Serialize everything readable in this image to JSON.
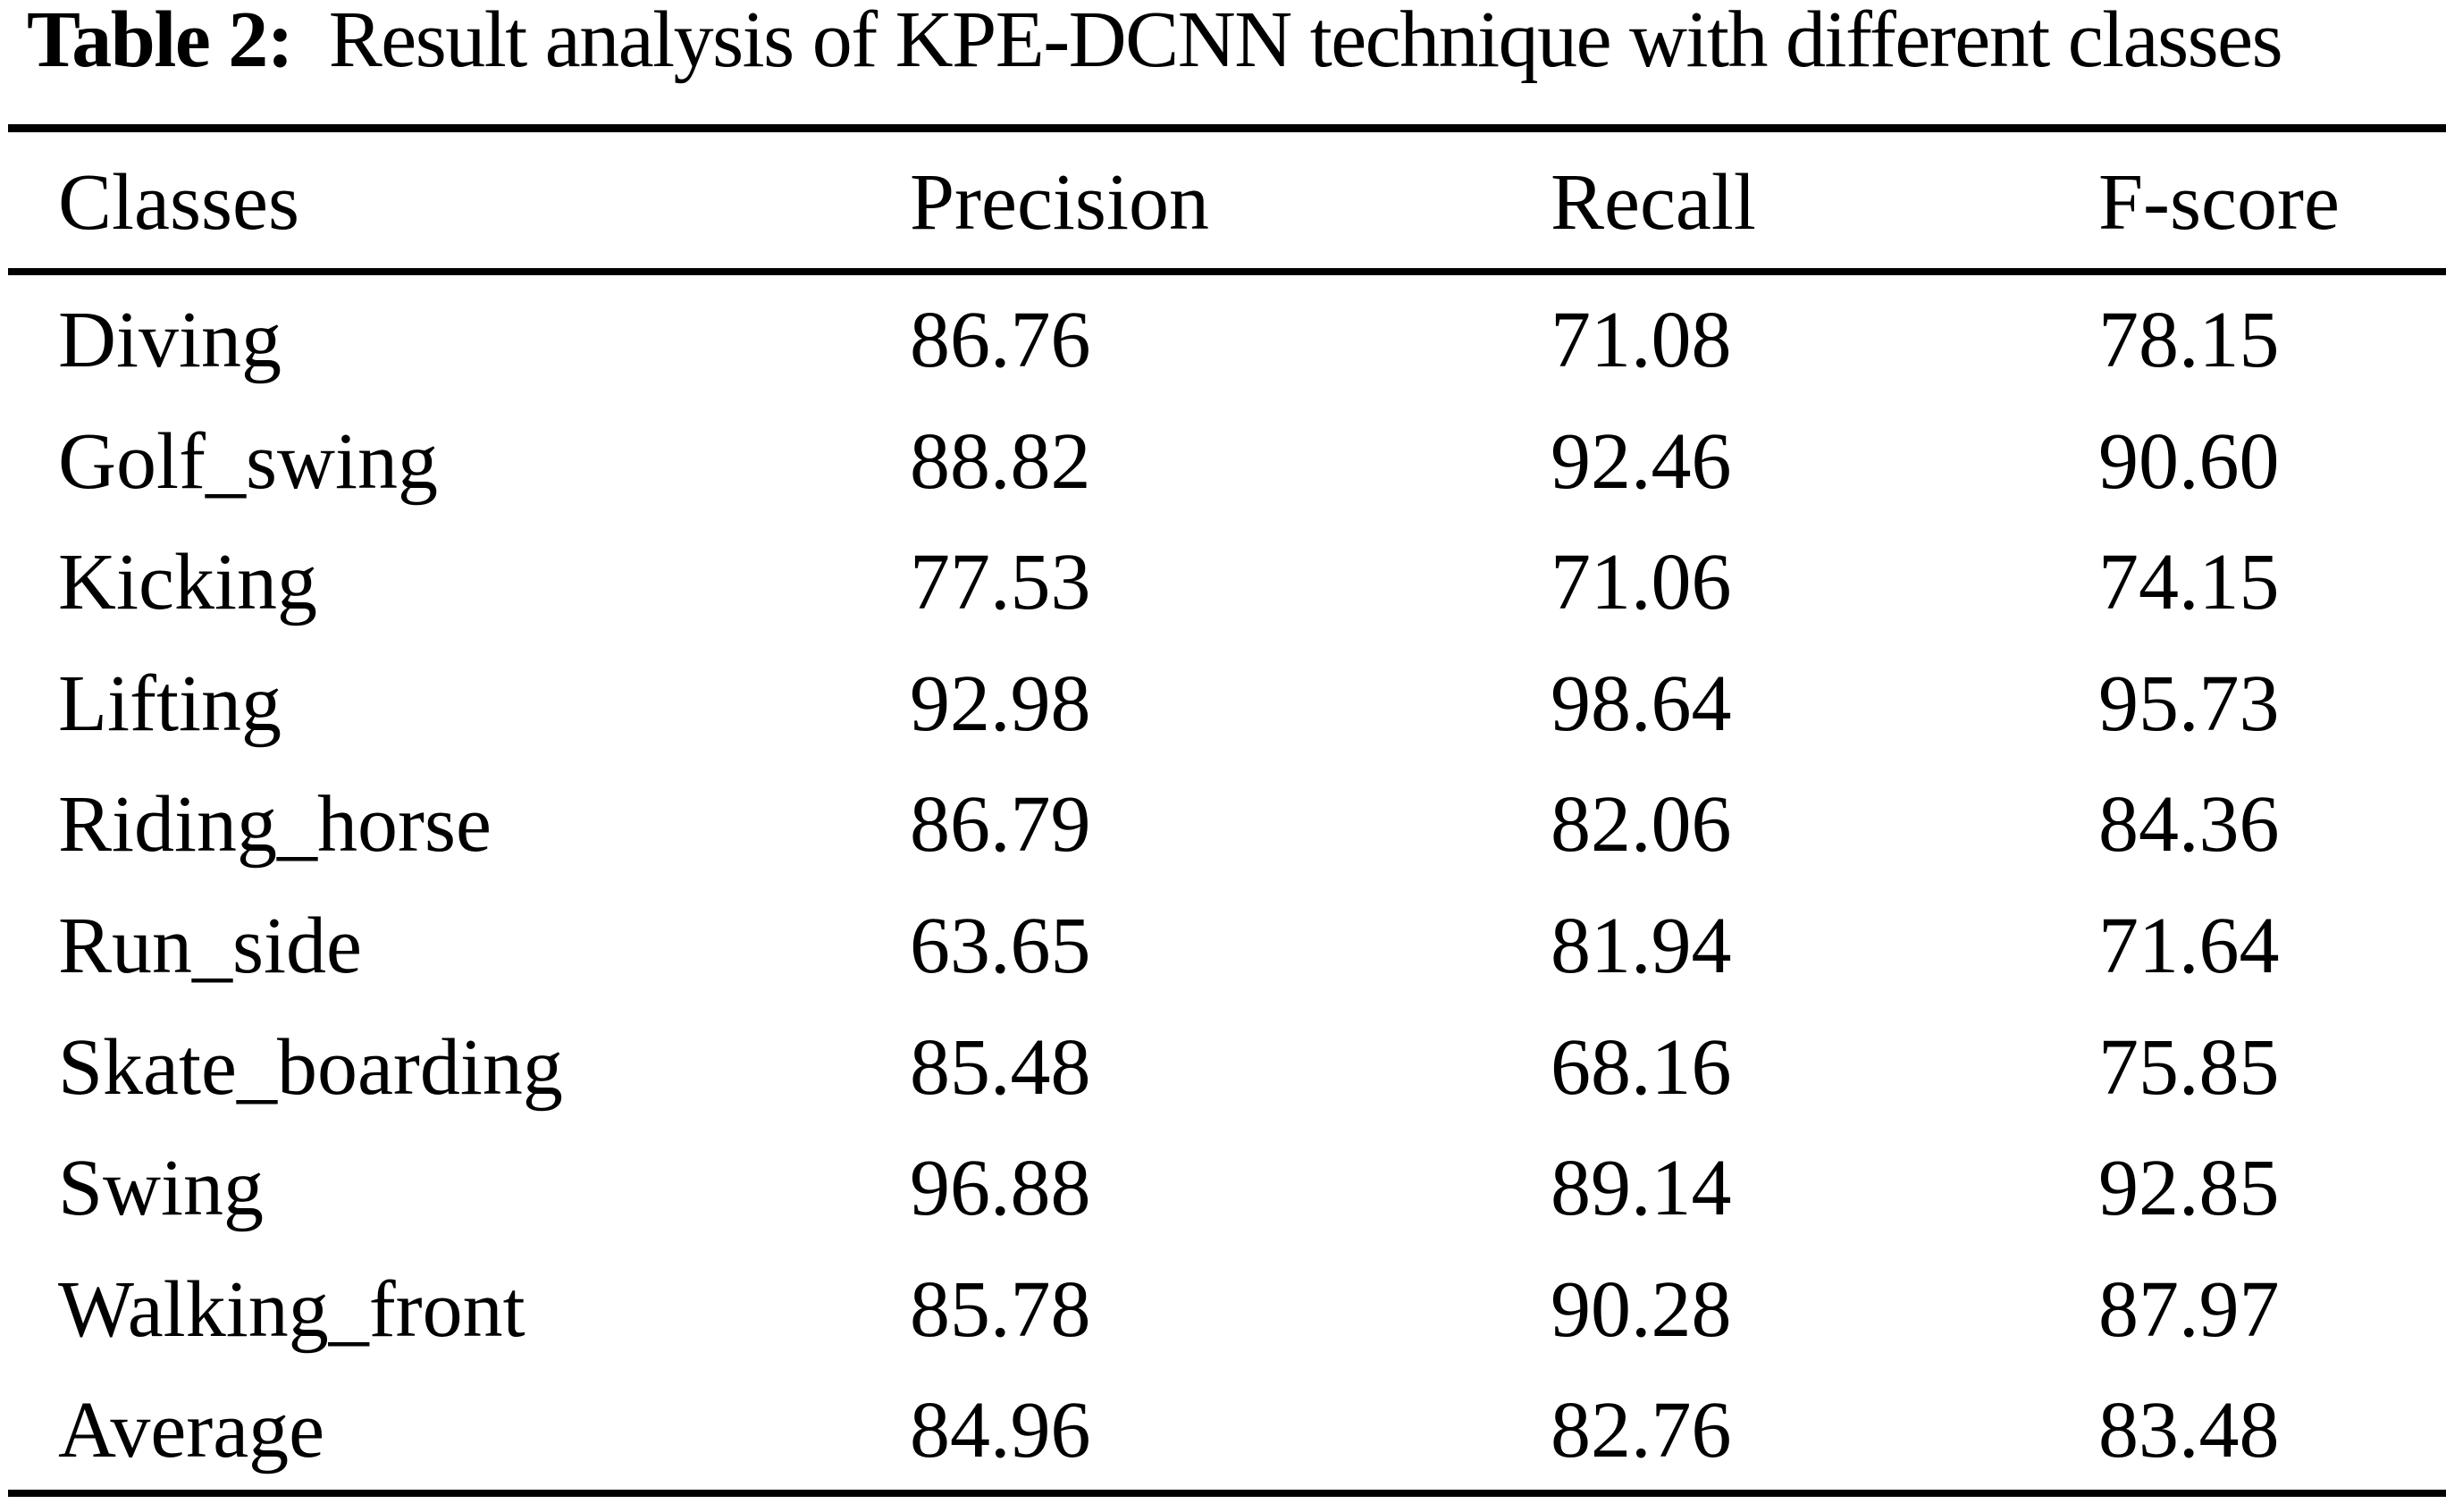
{
  "page": {
    "background": "#ffffff",
    "text_color": "#000000",
    "rule_color": "#000000"
  },
  "title": {
    "label": "Table 2:",
    "text": "Result analysis of KPE-DCNN technique with different classes"
  },
  "table": {
    "columns": [
      "Classes",
      "Precision",
      "Recall",
      "F-score"
    ],
    "rows": [
      {
        "class": "Diving",
        "precision": "86.76",
        "recall": "71.08",
        "fscore": "78.15"
      },
      {
        "class": "Golf_swing",
        "precision": "88.82",
        "recall": "92.46",
        "fscore": "90.60"
      },
      {
        "class": "Kicking",
        "precision": "77.53",
        "recall": "71.06",
        "fscore": "74.15"
      },
      {
        "class": "Lifting",
        "precision": "92.98",
        "recall": "98.64",
        "fscore": "95.73"
      },
      {
        "class": "Riding_horse",
        "precision": "86.79",
        "recall": "82.06",
        "fscore": "84.36"
      },
      {
        "class": "Run_side",
        "precision": "63.65",
        "recall": "81.94",
        "fscore": "71.64"
      },
      {
        "class": "Skate_boarding",
        "precision": "85.48",
        "recall": "68.16",
        "fscore": "75.85"
      },
      {
        "class": "Swing",
        "precision": "96.88",
        "recall": "89.14",
        "fscore": "92.85"
      },
      {
        "class": "Walking_front",
        "precision": "85.78",
        "recall": "90.28",
        "fscore": "87.97"
      },
      {
        "class": "Average",
        "precision": "84.96",
        "recall": "82.76",
        "fscore": "83.48"
      }
    ]
  }
}
